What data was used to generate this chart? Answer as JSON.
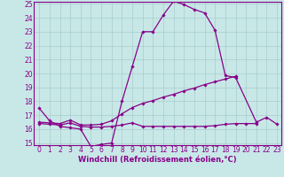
{
  "xlabel": "Windchill (Refroidissement éolien,°C)",
  "background_color": "#c8e8e8",
  "grid_color": "#aacccc",
  "line_color": "#880088",
  "spine_color": "#880088",
  "xlim_min": -0.5,
  "xlim_max": 23.4,
  "ylim_min": 14.85,
  "ylim_max": 25.15,
  "yticks": [
    15,
    16,
    17,
    18,
    19,
    20,
    21,
    22,
    23,
    24,
    25
  ],
  "xticks": [
    0,
    1,
    2,
    3,
    4,
    5,
    6,
    7,
    8,
    9,
    10,
    11,
    12,
    13,
    14,
    15,
    16,
    17,
    18,
    19,
    20,
    21,
    22,
    23
  ],
  "series1_x": [
    0,
    1,
    2,
    3,
    4,
    5,
    6,
    7,
    8,
    9,
    10,
    11,
    12,
    13,
    14,
    15,
    16,
    17,
    18,
    19,
    21,
    22,
    23
  ],
  "series1_y": [
    17.5,
    16.6,
    16.2,
    16.1,
    16.0,
    14.75,
    14.9,
    15.0,
    18.0,
    20.5,
    23.0,
    23.0,
    24.2,
    25.2,
    24.95,
    24.6,
    24.35,
    23.1,
    19.85,
    19.7,
    16.5,
    16.85,
    16.35
  ],
  "series2_x": [
    0,
    1,
    2,
    3,
    4,
    5,
    6,
    7,
    8,
    9,
    10,
    11,
    12,
    13,
    14,
    15,
    16,
    17,
    18,
    19
  ],
  "series2_y": [
    16.5,
    16.45,
    16.4,
    16.65,
    16.3,
    16.3,
    16.35,
    16.6,
    17.1,
    17.55,
    17.85,
    18.05,
    18.3,
    18.5,
    18.75,
    18.95,
    19.2,
    19.4,
    19.6,
    19.8
  ],
  "series3_x": [
    0,
    1,
    2,
    3,
    4,
    5,
    6,
    7,
    8,
    9,
    10,
    11,
    12,
    13,
    14,
    15,
    16,
    17,
    18,
    19,
    20,
    21
  ],
  "series3_y": [
    16.4,
    16.35,
    16.3,
    16.45,
    16.2,
    16.15,
    16.15,
    16.2,
    16.3,
    16.45,
    16.2,
    16.2,
    16.2,
    16.2,
    16.2,
    16.2,
    16.2,
    16.25,
    16.35,
    16.4,
    16.4,
    16.4
  ],
  "marker": "D",
  "markersize": 1.8,
  "linewidth": 0.9,
  "xlabel_fontsize": 6.0,
  "tick_fontsize": 5.5,
  "figwidth": 3.2,
  "figheight": 2.0,
  "dpi": 100
}
